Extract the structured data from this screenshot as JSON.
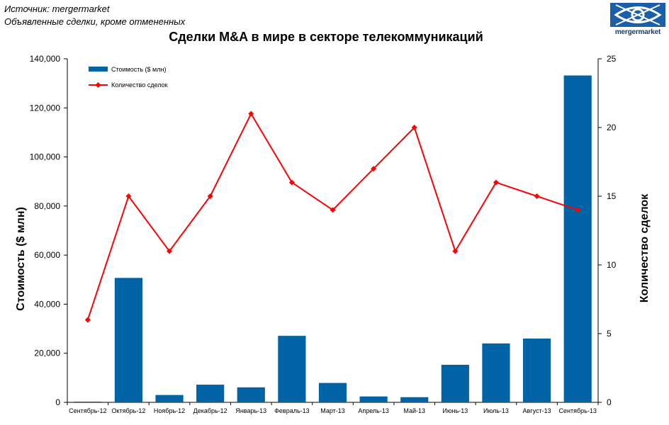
{
  "source_line1": "Источник: mergermarket",
  "source_line2": "Объявленные сделки, кроме отмененных",
  "logo": {
    "text": "mergermarket",
    "icon": "eye-logo-icon",
    "color": "#1a5fa8"
  },
  "chart_data": {
    "type": "bar",
    "title": "Сделки M&A в мире в секторе телекоммуникаций",
    "categories": [
      "Сентябрь-12",
      "Октябрь-12",
      "Ноябрь-12",
      "Декабрь-12",
      "Январь-13",
      "Февраль-13",
      "Март-13",
      "Апрель-13",
      "Май-13",
      "Июнь-13",
      "Июль-13",
      "Август-13",
      "Сентябрь-13"
    ],
    "series": [
      {
        "name": "Стоимость ($ млн)",
        "type": "bar",
        "axis": "left",
        "color": "#0063a6",
        "values": [
          300,
          50700,
          3000,
          7200,
          6100,
          27100,
          7900,
          2400,
          2100,
          15300,
          24000,
          26000,
          133200
        ]
      },
      {
        "name": "Количество сделок",
        "type": "line",
        "axis": "right",
        "color": "#ff0000",
        "values": [
          6,
          15,
          11,
          15,
          21,
          16,
          14,
          17,
          20,
          11,
          16,
          15,
          14
        ]
      }
    ],
    "ylabel": "Стоимость  ($ млн)",
    "y2label": "Количество  сделок",
    "ylim": [
      0,
      140000
    ],
    "y2lim": [
      0,
      25
    ],
    "yticks": [
      "0",
      "20,000",
      "40,000",
      "60,000",
      "80,000",
      "100,000",
      "120,000",
      "140,000"
    ],
    "y2ticks": [
      "0",
      "5",
      "10",
      "15",
      "20",
      "25"
    ],
    "legend": "top-left",
    "grid": false
  }
}
